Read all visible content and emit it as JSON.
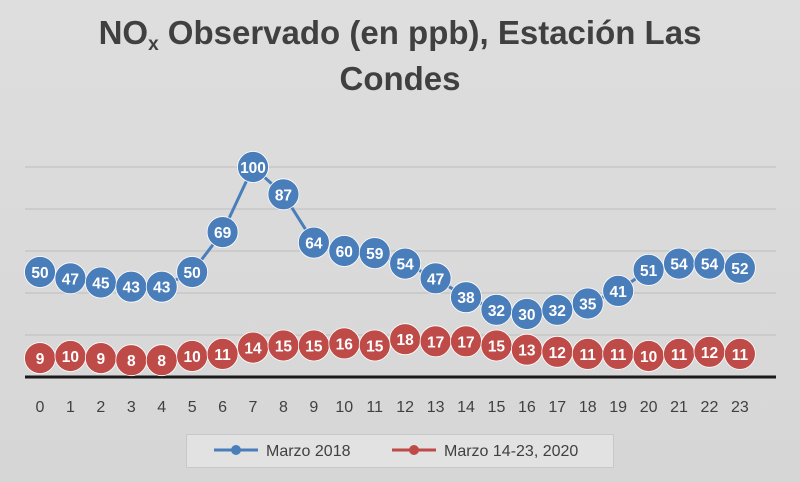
{
  "chart_data": {
    "type": "line",
    "title_main": "NO",
    "title_sub": "x",
    "title_rest": " Observado (en ppb), Estación Las",
    "title_line2": "Condes",
    "categories": [
      "0",
      "1",
      "2",
      "3",
      "4",
      "5",
      "6",
      "7",
      "8",
      "9",
      "10",
      "11",
      "12",
      "13",
      "14",
      "15",
      "16",
      "17",
      "18",
      "19",
      "20",
      "21",
      "22",
      "23"
    ],
    "ylim": [
      0,
      110
    ],
    "grid": true,
    "legend_position": "bottom",
    "series": [
      {
        "name": "Marzo 2018",
        "color": "#4a7ebb",
        "values": [
          50,
          47,
          45,
          43,
          43,
          50,
          69,
          100,
          87,
          64,
          60,
          59,
          54,
          47,
          38,
          32,
          30,
          32,
          35,
          41,
          51,
          54,
          54,
          52
        ]
      },
      {
        "name": "Marzo 14-23, 2020",
        "color": "#be4b48",
        "values": [
          9,
          10,
          9,
          8,
          8,
          10,
          11,
          14,
          15,
          15,
          16,
          15,
          18,
          17,
          17,
          15,
          13,
          12,
          11,
          11,
          10,
          11,
          12,
          11
        ]
      }
    ]
  }
}
